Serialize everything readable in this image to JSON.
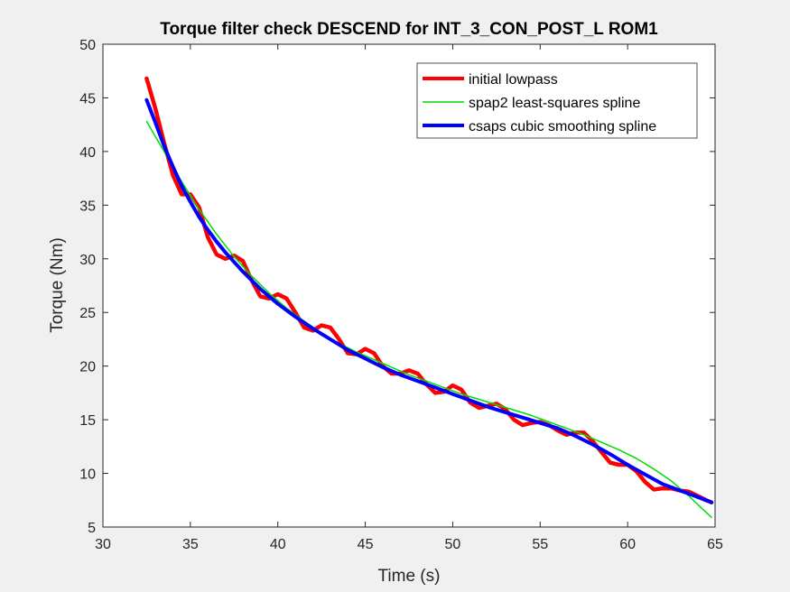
{
  "chart_data": {
    "type": "line",
    "title": "Torque filter check DESCEND for INT_3_CON_POST_L ROM1",
    "xlabel": "Time (s)",
    "ylabel": "Torque (Nm)",
    "xlim": [
      30,
      65
    ],
    "ylim": [
      5,
      50
    ],
    "xticks": [
      "30",
      "35",
      "40",
      "45",
      "50",
      "55",
      "60",
      "65"
    ],
    "yticks": [
      "5",
      "10",
      "15",
      "20",
      "25",
      "30",
      "35",
      "40",
      "45",
      "50"
    ],
    "grid": false,
    "legend_position": "top-right",
    "series": [
      {
        "name": "initial lowpass",
        "color": "#ff0000",
        "x": [
          32.5,
          33.0,
          33.5,
          34.0,
          34.5,
          35.0,
          35.5,
          36.0,
          36.5,
          37.0,
          37.5,
          38.0,
          38.5,
          39.0,
          39.5,
          40.0,
          40.5,
          41.0,
          41.5,
          42.0,
          42.5,
          43.0,
          43.5,
          44.0,
          44.5,
          45.0,
          45.5,
          46.0,
          46.5,
          47.0,
          47.5,
          48.0,
          48.5,
          49.0,
          49.5,
          50.0,
          50.5,
          51.0,
          51.5,
          52.0,
          52.5,
          53.0,
          53.5,
          54.0,
          54.5,
          55.0,
          55.5,
          56.0,
          56.5,
          57.0,
          57.5,
          58.0,
          58.5,
          59.0,
          59.5,
          60.0,
          60.5,
          61.0,
          61.5,
          62.0,
          62.5,
          63.0,
          63.5,
          64.0,
          64.5,
          64.8
        ],
        "y": [
          46.8,
          44.0,
          40.8,
          37.8,
          36.0,
          36.0,
          34.8,
          32.0,
          30.4,
          30.0,
          30.3,
          29.8,
          28.0,
          26.5,
          26.3,
          26.7,
          26.3,
          25.0,
          23.6,
          23.3,
          23.8,
          23.6,
          22.5,
          21.2,
          21.1,
          21.6,
          21.2,
          20.0,
          19.3,
          19.3,
          19.6,
          19.3,
          18.3,
          17.5,
          17.6,
          18.2,
          17.8,
          16.6,
          16.1,
          16.3,
          16.5,
          16.0,
          15.0,
          14.5,
          14.7,
          14.8,
          14.5,
          14.0,
          13.6,
          13.8,
          13.8,
          13.0,
          12.0,
          11.0,
          10.8,
          10.8,
          10.2,
          9.2,
          8.5,
          8.6,
          8.6,
          8.4,
          8.3,
          7.9,
          7.5,
          7.3
        ]
      },
      {
        "name": "spap2 least-squares spline",
        "color": "#00dd00",
        "x": [
          32.5,
          33.5,
          34.5,
          35.5,
          36.5,
          37.5,
          38.5,
          39.5,
          40.5,
          41.5,
          42.5,
          43.5,
          44.5,
          45.5,
          46.5,
          47.5,
          48.5,
          49.5,
          50.5,
          51.5,
          52.5,
          53.5,
          54.5,
          55.5,
          56.5,
          57.5,
          58.5,
          59.5,
          60.5,
          61.5,
          62.5,
          63.5,
          64.2,
          64.8
        ],
        "y": [
          42.8,
          40.0,
          37.2,
          34.6,
          32.3,
          30.2,
          28.4,
          26.8,
          25.4,
          24.2,
          23.1,
          22.1,
          21.3,
          20.6,
          19.9,
          19.2,
          18.6,
          18.0,
          17.4,
          16.9,
          16.4,
          15.9,
          15.4,
          14.8,
          14.2,
          13.6,
          12.9,
          12.2,
          11.4,
          10.4,
          9.3,
          7.9,
          6.8,
          5.9
        ]
      },
      {
        "name": "csaps cubic smoothing spline",
        "color": "#0000ff",
        "x": [
          32.5,
          33.0,
          33.5,
          34.0,
          34.5,
          35.0,
          35.5,
          36.0,
          36.5,
          37.0,
          38.0,
          39.0,
          40.0,
          41.0,
          42.0,
          43.0,
          44.0,
          45.0,
          46.0,
          47.0,
          48.0,
          49.0,
          50.0,
          51.0,
          52.0,
          53.0,
          54.0,
          55.0,
          56.0,
          57.0,
          58.0,
          59.0,
          60.0,
          61.0,
          62.0,
          63.0,
          64.0,
          64.8
        ],
        "y": [
          44.8,
          42.7,
          40.5,
          38.6,
          36.8,
          35.3,
          33.9,
          32.7,
          31.6,
          30.6,
          28.8,
          27.2,
          25.8,
          24.6,
          23.5,
          22.5,
          21.5,
          20.7,
          19.9,
          19.2,
          18.6,
          18.0,
          17.4,
          16.8,
          16.2,
          15.7,
          15.2,
          14.7,
          14.2,
          13.5,
          12.7,
          11.8,
          10.8,
          9.9,
          9.0,
          8.4,
          7.8,
          7.3
        ]
      }
    ]
  }
}
